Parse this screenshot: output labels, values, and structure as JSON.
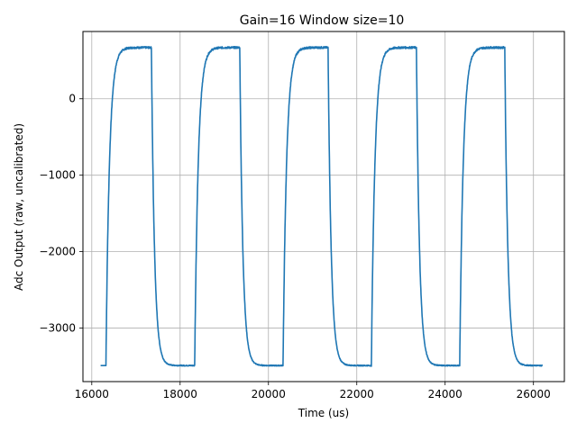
{
  "chart_data": {
    "type": "line",
    "title": "Gain=16 Window size=10",
    "xlabel": "Time (us)",
    "ylabel": "Adc Output (raw, uncalibrated)",
    "xlim": [
      15800,
      26700
    ],
    "ylim": [
      -3700,
      880
    ],
    "xticks": [
      16000,
      18000,
      20000,
      22000,
      24000,
      26000
    ],
    "yticks": [
      0,
      -1000,
      -2000,
      -3000
    ],
    "xtick_labels": [
      "16000",
      "18000",
      "20000",
      "22000",
      "24000",
      "26000"
    ],
    "ytick_labels": [
      "0",
      "−1000",
      "−2000",
      "−3000"
    ],
    "grid": true,
    "series": [
      {
        "color": "#1f77b4",
        "period": 2000,
        "cycles": 5,
        "high": 670,
        "low": -3490,
        "x_start": 16200,
        "x_end": 26200,
        "rise_times": [
          16320,
          18330,
          20330,
          22330,
          24330
        ],
        "fall_times": [
          17350,
          19350,
          21350,
          23350,
          25350
        ]
      }
    ]
  }
}
